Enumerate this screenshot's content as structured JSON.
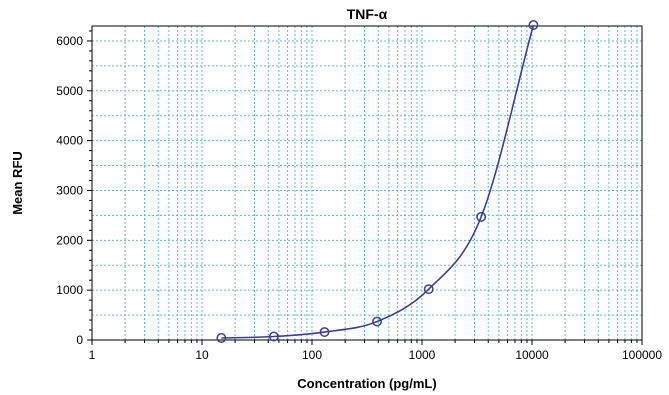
{
  "chart_data": {
    "type": "scatter",
    "title": "TNF-α",
    "xlabel": "Concentration (pg/mL)",
    "ylabel": "Mean RFU",
    "x_scale": "log",
    "xlim": [
      1,
      100000
    ],
    "ylim": [
      0,
      6300
    ],
    "x_tick_labels": [
      "1",
      "10",
      "100",
      "1000",
      "10000",
      "100000"
    ],
    "y_tick_labels": [
      "0",
      "1000",
      "2000",
      "3000",
      "4000",
      "5000",
      "6000"
    ],
    "grid": true,
    "series": [
      {
        "points_x": [
          15,
          45,
          130,
          390,
          1150,
          3450,
          10300
        ],
        "points_y": [
          40,
          70,
          160,
          370,
          1020,
          2470,
          6320
        ],
        "fit_curve": true
      }
    ],
    "colors": {
      "grid": "#5bb8d6",
      "marker": "#3a3f8f",
      "curve": "#3a3f8f",
      "axis": "#000000"
    }
  }
}
